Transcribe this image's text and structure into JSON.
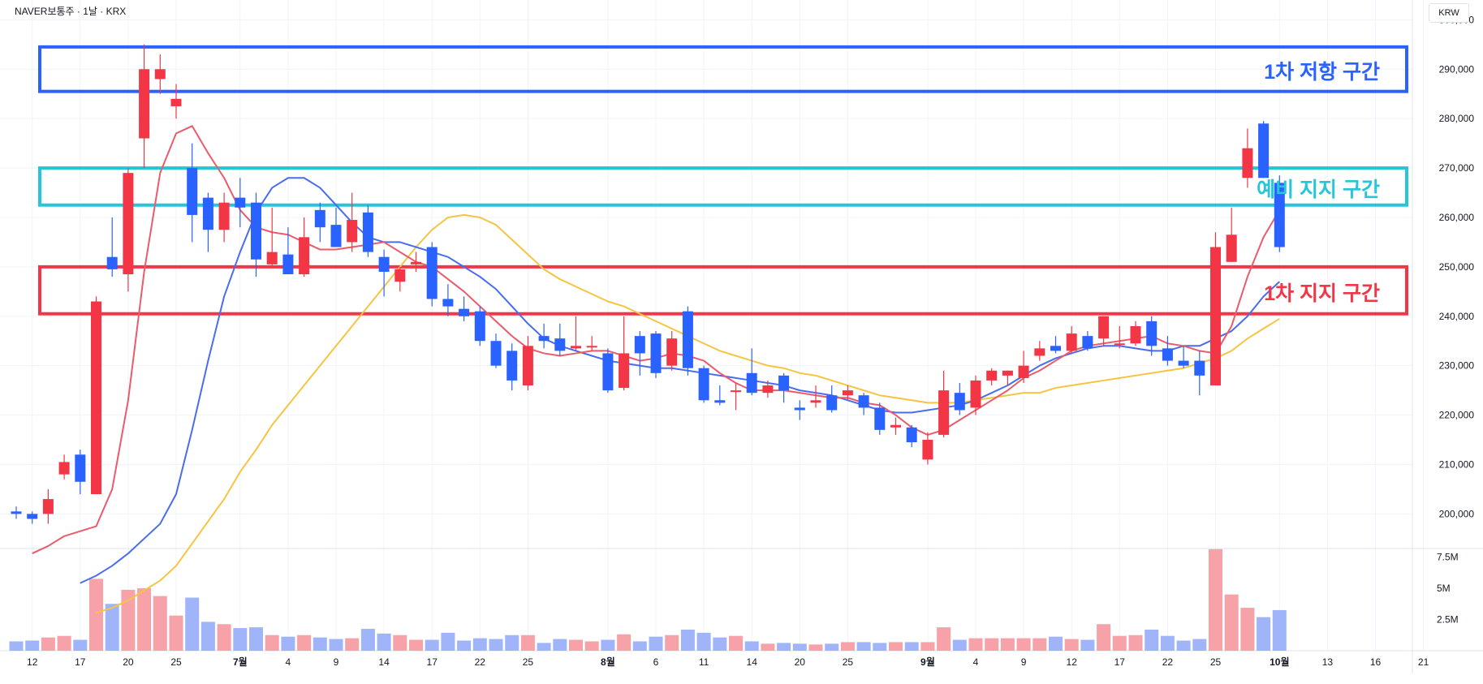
{
  "header": {
    "title": "NAVER보통주 · 1날 · KRX",
    "currency": "KRW"
  },
  "zones": [
    {
      "label": "1차 저항 구간",
      "low": 285500,
      "high": 294500,
      "color": "#2962ff"
    },
    {
      "label": "예비 지지 구간",
      "low": 262500,
      "high": 270000,
      "color": "#26c6da"
    },
    {
      "label": "1차 지지 구간",
      "low": 240500,
      "high": 250000,
      "color": "#f23645"
    }
  ],
  "chart_data": {
    "type": "candlestick",
    "price_ylim": [
      193000,
      304000
    ],
    "price_ticks": [
      "200,000",
      "210,000",
      "220,000",
      "230,000",
      "240,000",
      "250,000",
      "260,000",
      "270,000",
      "280,000",
      "290,000",
      "300,000"
    ],
    "volume_ticks": [
      "2.5M",
      "5M",
      "7.5M"
    ],
    "x_ticks": [
      {
        "label": "12",
        "i": 1
      },
      {
        "label": "17",
        "i": 4
      },
      {
        "label": "20",
        "i": 7
      },
      {
        "label": "25",
        "i": 10
      },
      {
        "label": "7월",
        "i": 14,
        "bold": true
      },
      {
        "label": "4",
        "i": 17
      },
      {
        "label": "9",
        "i": 20
      },
      {
        "label": "14",
        "i": 23
      },
      {
        "label": "17",
        "i": 26
      },
      {
        "label": "22",
        "i": 29
      },
      {
        "label": "25",
        "i": 32
      },
      {
        "label": "8월",
        "i": 37,
        "bold": true
      },
      {
        "label": "6",
        "i": 40
      },
      {
        "label": "11",
        "i": 43
      },
      {
        "label": "14",
        "i": 46
      },
      {
        "label": "20",
        "i": 49
      },
      {
        "label": "25",
        "i": 52
      },
      {
        "label": "9월",
        "i": 57,
        "bold": true
      },
      {
        "label": "4",
        "i": 60
      },
      {
        "label": "9",
        "i": 63
      },
      {
        "label": "12",
        "i": 66
      },
      {
        "label": "17",
        "i": 69
      },
      {
        "label": "22",
        "i": 72
      },
      {
        "label": "25",
        "i": 75
      },
      {
        "label": "10월",
        "i": 79,
        "bold": true
      },
      {
        "label": "13",
        "i": 82
      },
      {
        "label": "16",
        "i": 85
      },
      {
        "label": "21",
        "i": 88
      }
    ],
    "up_color": "#f23645",
    "down_color": "#2962ff",
    "candles": [
      [
        200500,
        201500,
        199000,
        200000
      ],
      [
        200000,
        200500,
        198000,
        199000
      ],
      [
        200000,
        205000,
        198000,
        203000
      ],
      [
        208000,
        212000,
        207000,
        210500
      ],
      [
        212000,
        213000,
        204000,
        206500
      ],
      [
        204000,
        244000,
        204000,
        243000
      ],
      [
        252000,
        260000,
        248000,
        249500
      ],
      [
        248500,
        270000,
        245000,
        269000
      ],
      [
        276000,
        295000,
        270000,
        290000
      ],
      [
        288000,
        293000,
        285000,
        290000
      ],
      [
        282500,
        287000,
        280000,
        284000
      ],
      [
        270000,
        275000,
        255000,
        260500
      ],
      [
        264000,
        265000,
        253000,
        257500
      ],
      [
        257500,
        265000,
        255000,
        263000
      ],
      [
        264000,
        268000,
        258000,
        262000
      ],
      [
        263000,
        265000,
        248000,
        251500
      ],
      [
        250500,
        262000,
        250000,
        253000
      ],
      [
        252500,
        258000,
        248500,
        248500
      ],
      [
        248500,
        260000,
        248000,
        256000
      ],
      [
        261500,
        263000,
        255000,
        258000
      ],
      [
        258500,
        262000,
        254000,
        254000
      ],
      [
        255000,
        265000,
        253000,
        259500
      ],
      [
        261000,
        262500,
        252000,
        253000
      ],
      [
        252000,
        253500,
        244000,
        249000
      ],
      [
        247000,
        250000,
        245000,
        249500
      ],
      [
        250500,
        253000,
        249000,
        251000
      ],
      [
        254000,
        255000,
        242000,
        243500
      ],
      [
        243500,
        246500,
        240000,
        242000
      ],
      [
        241500,
        244000,
        239000,
        240000
      ],
      [
        241000,
        242000,
        234000,
        235000
      ],
      [
        235000,
        236500,
        229500,
        230000
      ],
      [
        233000,
        234500,
        225000,
        227000
      ],
      [
        226000,
        236000,
        225000,
        234000
      ],
      [
        236000,
        238500,
        233500,
        235000
      ],
      [
        235500,
        238500,
        232000,
        233000
      ],
      [
        233500,
        240000,
        233000,
        234000
      ],
      [
        234000,
        236000,
        233000,
        234000
      ],
      [
        232500,
        233500,
        224500,
        225000
      ],
      [
        225500,
        240000,
        225000,
        232500
      ],
      [
        236000,
        237000,
        228000,
        232500
      ],
      [
        236500,
        237000,
        227500,
        228500
      ],
      [
        230000,
        237000,
        229000,
        235500
      ],
      [
        241000,
        242000,
        228000,
        229500
      ],
      [
        229500,
        230000,
        222500,
        223000
      ],
      [
        223000,
        226000,
        222000,
        222500
      ],
      [
        225000,
        226500,
        221000,
        225000
      ],
      [
        228500,
        233500,
        224000,
        224500
      ],
      [
        224500,
        227000,
        223500,
        226000
      ],
      [
        228000,
        228500,
        222500,
        225000
      ],
      [
        221500,
        223000,
        219000,
        221000
      ],
      [
        222500,
        226000,
        221500,
        223000
      ],
      [
        224000,
        226000,
        220500,
        221000
      ],
      [
        224000,
        226000,
        223000,
        225000
      ],
      [
        224000,
        224500,
        220000,
        221500
      ],
      [
        221500,
        222500,
        216000,
        217000
      ],
      [
        217500,
        219500,
        216000,
        218000
      ],
      [
        217500,
        218000,
        213500,
        214500
      ],
      [
        211000,
        216500,
        210000,
        215000
      ],
      [
        216000,
        229000,
        215500,
        225000
      ],
      [
        224500,
        226500,
        220000,
        221000
      ],
      [
        221500,
        228000,
        220000,
        227000
      ],
      [
        227000,
        229500,
        226000,
        229000
      ],
      [
        228000,
        229000,
        226000,
        229000
      ],
      [
        227500,
        233000,
        226500,
        230000
      ],
      [
        232000,
        235000,
        231000,
        233500
      ],
      [
        234000,
        236000,
        232500,
        233000
      ],
      [
        233000,
        238000,
        232500,
        236500
      ],
      [
        236000,
        237000,
        233000,
        233500
      ],
      [
        235500,
        240000,
        234000,
        240000
      ],
      [
        234500,
        238000,
        233500,
        234500
      ],
      [
        234500,
        239000,
        234000,
        238000
      ],
      [
        239000,
        240000,
        232000,
        234000
      ],
      [
        233500,
        236000,
        230000,
        231000
      ],
      [
        231000,
        234000,
        229500,
        230000
      ],
      [
        231000,
        233000,
        224000,
        228000
      ],
      [
        226000,
        257000,
        226000,
        254000
      ],
      [
        251000,
        262000,
        251000,
        256500
      ],
      [
        268000,
        278000,
        266000,
        274000
      ],
      [
        279000,
        279500,
        268000,
        268000
      ],
      [
        267000,
        268500,
        253000,
        254000
      ]
    ],
    "ma5": [
      192000,
      193500,
      195500,
      196500,
      197500,
      205000,
      223000,
      249000,
      269000,
      277000,
      278500,
      273000,
      268000,
      261500,
      258000,
      257000,
      256500,
      255000,
      253500,
      253500,
      254000,
      254500,
      255000,
      253000,
      251000,
      250000,
      247500,
      245000,
      242000,
      239000,
      236000,
      233500,
      232500,
      232000,
      232500,
      233000,
      233000,
      232000,
      231000,
      231500,
      232500,
      232000,
      231000,
      228500,
      226500,
      225000,
      225000,
      225000,
      224500,
      224000,
      223500,
      223500,
      222500,
      222000,
      220000,
      217500,
      216000,
      217000,
      219000,
      221000,
      223000,
      225000,
      227500,
      229000,
      231000,
      233000,
      234000,
      234500,
      235000,
      235500,
      236000,
      234500,
      234000,
      233000,
      232500,
      238000,
      248000,
      256000,
      261500
    ],
    "ma10": [
      186000,
      187500,
      189500,
      192000,
      195000,
      198000,
      204000,
      217000,
      231000,
      244000,
      253000,
      261000,
      266000,
      268000,
      268000,
      266000,
      262500,
      259000,
      256000,
      255000,
      255000,
      254000,
      253000,
      252000,
      250000,
      248000,
      245500,
      242000,
      238500,
      235500,
      234000,
      233000,
      232000,
      231000,
      230500,
      230000,
      229500,
      229500,
      229000,
      228500,
      228000,
      227500,
      227000,
      226500,
      226000,
      225000,
      224500,
      224000,
      223000,
      222000,
      221000,
      220500,
      220500,
      221000,
      221500,
      222000,
      223000,
      224500,
      226000,
      228000,
      230000,
      231500,
      232500,
      233500,
      234000,
      234000,
      233500,
      233000,
      233000,
      234000,
      234000,
      235500,
      237000,
      240000,
      244000,
      247000
    ],
    "ma20": [
      180000,
      181000,
      182500,
      184500,
      186500,
      189500,
      194000,
      198500,
      203000,
      208500,
      213000,
      218000,
      222000,
      226000,
      230000,
      234000,
      238000,
      242000,
      246000,
      250000,
      254000,
      257500,
      260000,
      260500,
      260000,
      258500,
      255500,
      252500,
      249500,
      247500,
      246000,
      244500,
      243000,
      242000,
      240500,
      239000,
      237500,
      236000,
      234500,
      233000,
      232000,
      231000,
      230000,
      229500,
      228500,
      228000,
      227000,
      226000,
      225000,
      224000,
      223500,
      223000,
      222500,
      222500,
      222500,
      223000,
      223500,
      224000,
      224500,
      224500,
      225500,
      226000,
      226500,
      227000,
      227500,
      228000,
      228500,
      229000,
      229500,
      230500,
      231500,
      233000,
      235500,
      237500,
      239500
    ],
    "volume": [
      1.2,
      1.3,
      1.7,
      1.9,
      1.4,
      9.2,
      6.0,
      7.8,
      8.0,
      7.0,
      4.5,
      6.8,
      3.7,
      3.4,
      2.9,
      3.0,
      2.0,
      1.8,
      2.0,
      1.7,
      1.5,
      1.6,
      2.8,
      2.2,
      2.0,
      1.4,
      1.4,
      2.3,
      1.3,
      1.6,
      1.5,
      2.0,
      2.0,
      1.0,
      1.5,
      1.4,
      1.2,
      1.4,
      2.1,
      1.2,
      1.8,
      2.0,
      2.7,
      2.3,
      1.7,
      1.9,
      1.2,
      0.9,
      1.0,
      0.9,
      0.8,
      0.9,
      1.1,
      1.1,
      1.0,
      1.1,
      1.1,
      1.1,
      3.0,
      1.4,
      1.6,
      1.6,
      1.6,
      1.6,
      1.6,
      1.8,
      1.5,
      1.4,
      3.4,
      1.9,
      2.0,
      2.7,
      1.9,
      1.3,
      1.5,
      13.0,
      7.2,
      5.5,
      4.3,
      5.2
    ]
  }
}
